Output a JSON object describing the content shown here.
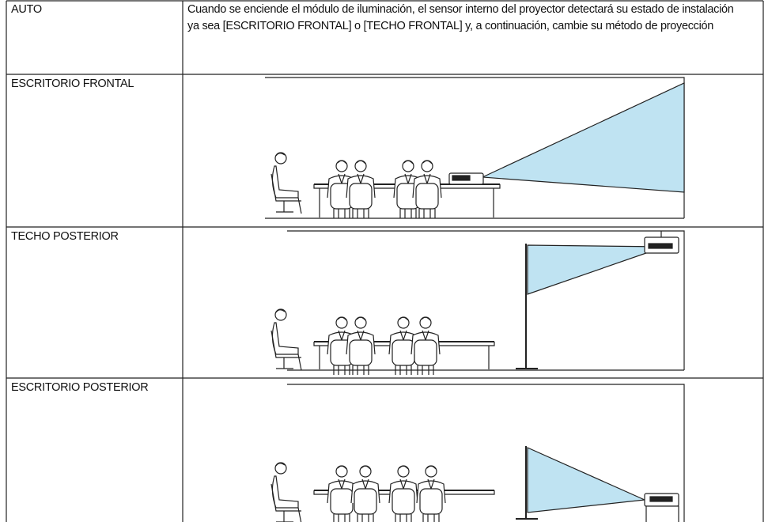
{
  "table": {
    "rows": [
      [
        "AUTO",
        "Cuando se enciende el módulo de iluminación, el sensor interno del proyector detectará su estado de instalación ya sea [ESCRITORIO FRONTAL] o [TECHO FRONTAL] y, a continuación, cambie su método de proyección"
      ],
      [
        "ESCRITORIO FRONTAL"
      ],
      [
        "TECHO POSTERIOR"
      ],
      [
        "ESCRITORIO POSTERIOR"
      ]
    ]
  }
}
